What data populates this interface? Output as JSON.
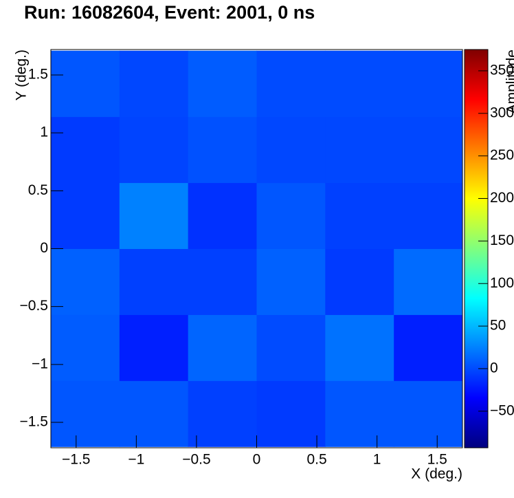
{
  "chart_data": {
    "type": "heatmap",
    "title": "Run: 16082604, Event: 2001, 0 ns",
    "x_label": "X (deg.)",
    "y_label": "Y (deg.)",
    "z_label": "Amplitude",
    "x_edges": [
      -1.71,
      -1.14,
      -0.57,
      0,
      0.57,
      1.14,
      1.71
    ],
    "y_edges": [
      -1.71,
      -1.14,
      -0.57,
      0,
      0.57,
      1.14,
      1.71
    ],
    "z": [
      [
        5,
        5,
        -5,
        -8,
        5,
        5
      ],
      [
        8,
        -20,
        12,
        0,
        18,
        -20
      ],
      [
        10,
        -5,
        -5,
        10,
        -8,
        15
      ],
      [
        -8,
        25,
        -12,
        5,
        -5,
        -5
      ],
      [
        -8,
        -3,
        3,
        -2,
        -2,
        -2
      ],
      [
        5,
        -2,
        8,
        0,
        0,
        0
      ]
    ],
    "xlim": [
      -1.71,
      1.71
    ],
    "ylim": [
      -1.72,
      1.72
    ],
    "zlim": [
      -93,
      375
    ],
    "xticks": [
      {
        "value": -1.5,
        "label": "−1.5"
      },
      {
        "value": -1,
        "label": "−1"
      },
      {
        "value": -0.5,
        "label": "−0.5"
      },
      0,
      0.5,
      1,
      1.5
    ],
    "yticks": [
      {
        "value": -1.5,
        "label": "−1.5"
      },
      {
        "value": -1,
        "label": "−1"
      },
      {
        "value": -0.5,
        "label": "−0.5"
      },
      0,
      0.5,
      1,
      1.5
    ],
    "zticks": [
      {
        "value": -50,
        "label": "−50"
      },
      0,
      50,
      100,
      150,
      200,
      250,
      300,
      350
    ],
    "colormap": [
      "#00007f",
      "#0000ff",
      "#007fff",
      "#00ffff",
      "#7fff7f",
      "#ffff00",
      "#ff7f00",
      "#ff0000",
      "#7f0000"
    ]
  }
}
